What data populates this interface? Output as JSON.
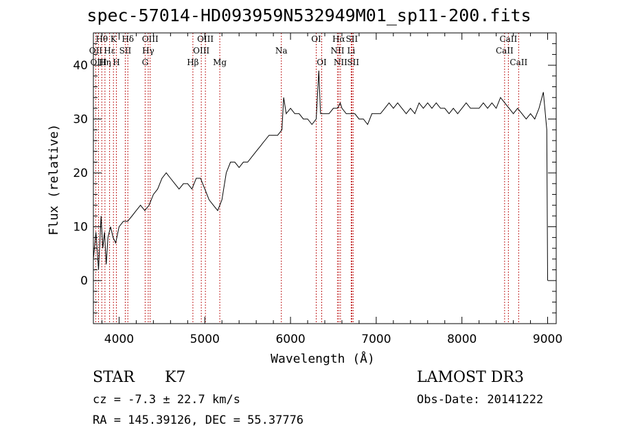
{
  "chart_data": {
    "type": "line",
    "title": "spec-57014-HD093959N532949M01_sp11-200.fits",
    "xlabel": "Wavelength (Å)",
    "ylabel": "Flux (relative)",
    "xlim": [
      3700,
      9100
    ],
    "ylim": [
      -8,
      46
    ],
    "xticks": [
      "4000",
      "5000",
      "6000",
      "7000",
      "8000",
      "9000"
    ],
    "yticks": [
      "0",
      "10",
      "20",
      "30",
      "40"
    ],
    "x": [
      3700,
      3730,
      3760,
      3790,
      3810,
      3830,
      3850,
      3870,
      3900,
      3930,
      3960,
      4000,
      4050,
      4100,
      4150,
      4200,
      4250,
      4300,
      4350,
      4400,
      4450,
      4500,
      4550,
      4600,
      4650,
      4700,
      4750,
      4800,
      4850,
      4900,
      4950,
      5000,
      5050,
      5100,
      5150,
      5200,
      5250,
      5300,
      5350,
      5400,
      5450,
      5500,
      5550,
      5600,
      5650,
      5700,
      5750,
      5800,
      5850,
      5900,
      5920,
      5950,
      6000,
      6050,
      6100,
      6150,
      6200,
      6250,
      6300,
      6330,
      6350,
      6400,
      6450,
      6500,
      6550,
      6580,
      6600,
      6650,
      6700,
      6750,
      6800,
      6850,
      6900,
      6950,
      7000,
      7050,
      7100,
      7150,
      7200,
      7250,
      7300,
      7350,
      7400,
      7450,
      7500,
      7550,
      7600,
      7650,
      7700,
      7750,
      7800,
      7850,
      7900,
      7950,
      8000,
      8050,
      8100,
      8150,
      8200,
      8250,
      8300,
      8350,
      8400,
      8450,
      8500,
      8550,
      8600,
      8650,
      8700,
      8750,
      8800,
      8850,
      8900,
      8950,
      8990,
      9000
    ],
    "y": [
      4,
      9,
      2,
      12,
      6,
      9,
      3,
      8,
      10,
      8,
      7,
      10,
      11,
      11,
      12,
      13,
      14,
      13,
      14,
      16,
      17,
      19,
      20,
      19,
      18,
      17,
      18,
      18,
      17,
      19,
      19,
      17,
      15,
      14,
      13,
      15,
      20,
      22,
      22,
      21,
      22,
      22,
      23,
      24,
      25,
      26,
      27,
      27,
      27,
      28,
      34,
      31,
      32,
      31,
      31,
      30,
      30,
      29,
      30,
      39,
      31,
      31,
      31,
      32,
      32,
      33,
      32,
      31,
      31,
      31,
      30,
      30,
      29,
      31,
      31,
      31,
      32,
      33,
      32,
      33,
      32,
      31,
      32,
      31,
      33,
      32,
      33,
      32,
      33,
      32,
      32,
      31,
      32,
      31,
      32,
      33,
      32,
      32,
      32,
      33,
      32,
      33,
      32,
      34,
      33,
      32,
      31,
      32,
      31,
      30,
      31,
      30,
      32,
      35,
      28,
      0
    ],
    "lines": [
      {
        "label": "Hθ",
        "wl": 3798,
        "row": 1
      },
      {
        "label": "OII",
        "wl": 3727,
        "row": 2
      },
      {
        "label": "OIII",
        "wl": 3760,
        "row": 3
      },
      {
        "label": "K",
        "wl": 3934,
        "row": 1
      },
      {
        "label": "Hε",
        "wl": 3889,
        "row": 2
      },
      {
        "label": "Hη",
        "wl": 3835,
        "row": 3
      },
      {
        "label": "SII",
        "wl": 4072,
        "row": 2
      },
      {
        "label": "H",
        "wl": 3968,
        "row": 3
      },
      {
        "label": "Hδ",
        "wl": 4102,
        "row": 1
      },
      {
        "label": "OIII",
        "wl": 4363,
        "row": 1
      },
      {
        "label": "Hγ",
        "wl": 4340,
        "row": 2
      },
      {
        "label": "G",
        "wl": 4304,
        "row": 3
      },
      {
        "label": "Hβ",
        "wl": 4861,
        "row": 3
      },
      {
        "label": "OIII",
        "wl": 5007,
        "row": 1
      },
      {
        "label": "OIII",
        "wl": 4959,
        "row": 2
      },
      {
        "label": "Mg",
        "wl": 5175,
        "row": 3
      },
      {
        "label": "Na",
        "wl": 5893,
        "row": 2
      },
      {
        "label": "OI",
        "wl": 6300,
        "row": 1
      },
      {
        "label": "OI",
        "wl": 6364,
        "row": 3
      },
      {
        "label": "Hα",
        "wl": 6563,
        "row": 1
      },
      {
        "label": "NII",
        "wl": 6548,
        "row": 2
      },
      {
        "label": "NII",
        "wl": 6583,
        "row": 3
      },
      {
        "label": "SII",
        "wl": 6716,
        "row": 1
      },
      {
        "label": "Li",
        "wl": 6708,
        "row": 2
      },
      {
        "label": "SII",
        "wl": 6731,
        "row": 3
      },
      {
        "label": "CaII",
        "wl": 8542,
        "row": 1
      },
      {
        "label": "CaII",
        "wl": 8498,
        "row": 2
      },
      {
        "label": "CaII",
        "wl": 8662,
        "row": 3
      }
    ]
  },
  "info": {
    "object_class": "STAR",
    "subclass": "K7",
    "cz": "cz = -7.3 ± 22.7 km/s",
    "coords": "RA = 145.39126, DEC =  55.37776",
    "survey": "LAMOST DR3",
    "obs_date": "Obs-Date: 20141222"
  },
  "colors": {
    "line": "#000000",
    "marker": "#c02020",
    "axis": "#000000"
  }
}
